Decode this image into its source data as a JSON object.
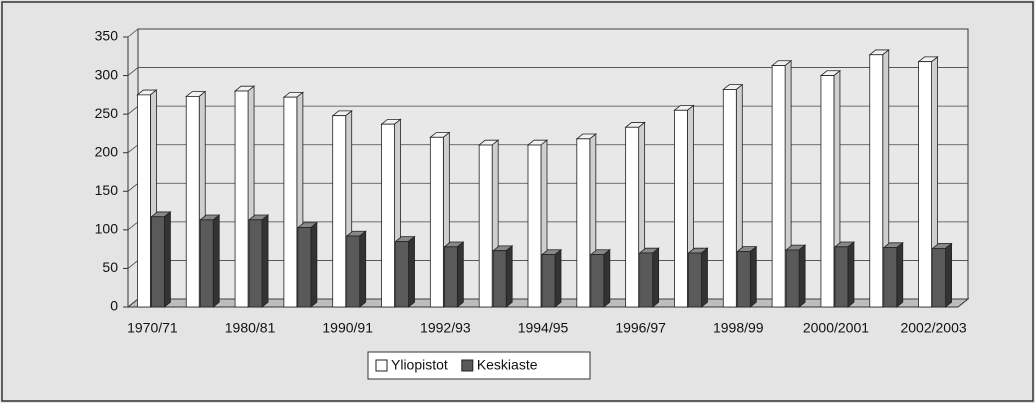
{
  "chart_data": {
    "type": "bar",
    "categories": [
      "1970/71",
      null,
      "1980/81",
      null,
      "1990/91",
      null,
      "1992/93",
      null,
      "1994/95",
      null,
      "1996/97",
      null,
      "1998/99",
      null,
      "2000/2001",
      null,
      "2002/2003"
    ],
    "series": [
      {
        "name": "Yliopistot",
        "color": "#ffffff",
        "values": [
          275,
          273,
          280,
          272,
          248,
          237,
          220,
          210,
          210,
          218,
          233,
          255,
          282,
          313,
          300,
          327,
          318
        ]
      },
      {
        "name": "Keskiaste",
        "color": "#5a5a5a",
        "values": [
          117,
          113,
          113,
          103,
          92,
          85,
          78,
          73,
          68,
          68,
          70,
          70,
          72,
          74,
          78,
          77,
          76
        ]
      }
    ],
    "ylim": [
      0,
      350
    ],
    "yticks": [
      0,
      50,
      100,
      150,
      200,
      250,
      300,
      350
    ],
    "grid": true,
    "legend": "bottom"
  }
}
